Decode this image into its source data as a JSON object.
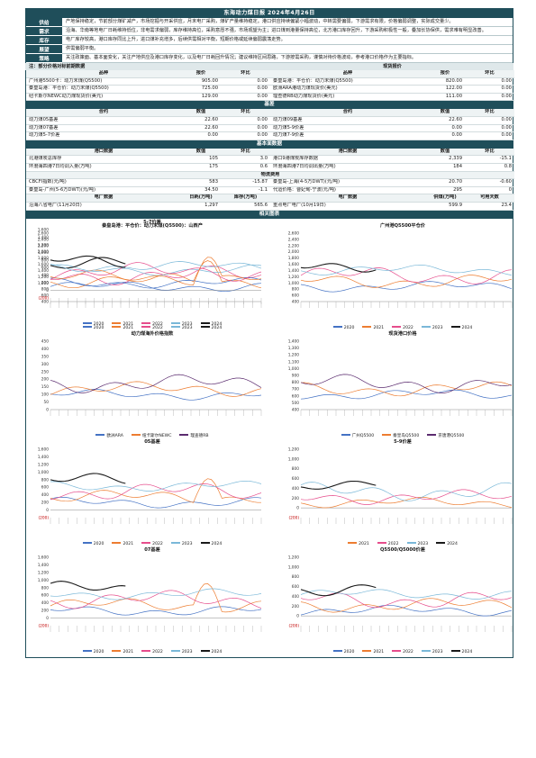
{
  "title": "东海动力煤日报 2024年4月26日",
  "summary": [
    {
      "label": "供给",
      "text": "产地保持稳定，节前部分煤矿减产，市场挖掘与开采供应，月末电厂采购，煤矿产量维持稳定。港口供应持续偏紧小幅波动，中转需要偏弱，下游需求有限，价格偏弱调整，实际成交量少。"
    },
    {
      "label": "需求",
      "text": "沿海、华南等地电厂日耗维持低位，非电需求偏弱，库存维持高位，采购意愿不强，市场观望为主；进口煤到港量保持高位，北方港口库存回升，下游采购积极性一般，叠加长协保供，需求难有明显改善。"
    },
    {
      "label": "库存",
      "text": "电厂库存较高，港口库存同比上升，进口煤补充增多，后续供需相对平衡，短期价格或延续偏弱震荡走势。"
    },
    {
      "label": "展望",
      "text": "供需偏弱平衡。"
    },
    {
      "label": "策略",
      "text": "关注政策面、基本面变化，关注产地供应及港口库存变化，以及电厂日耗回升情况；建议维持区间思路，下游按需采购，谨慎对待价格波动，参考港口价格作为主要指标。"
    }
  ],
  "tables": {
    "notice": "注：部分价格对标前期数据",
    "spot_label": "现货报价",
    "col_product": "品种",
    "col_price": "报价",
    "col_change": "环比",
    "spot_left": [
      {
        "name": "广州港5500卡：动力末煤(Q5500)",
        "price": "905.00",
        "chg": "0.00"
      },
      {
        "name": "秦皇岛港：平仓价：动力末煤(Q5500)",
        "price": "725.00",
        "chg": "0.00"
      },
      {
        "name": "纽卡斯尔NEWC动力煤现货价(美元)",
        "price": "129.00",
        "chg": "0.00"
      }
    ],
    "spot_right": [
      {
        "name": "秦皇岛港：平仓价：动力末煤(Q5500)",
        "price": "820.00",
        "chg": "0.00"
      },
      {
        "name": "欧洲ARA港动力煤现货价(美元)",
        "price": "122.00",
        "chg": "0.00"
      },
      {
        "name": "理查德RB动力煤现货价(美元)",
        "price": "111.00",
        "chg": "0.00"
      }
    ],
    "basis_label": "基差",
    "col_contract": "合约",
    "col_value": "数值",
    "basis_left": [
      {
        "name": "动力煤05基差",
        "value": "22.60",
        "chg": "0.00"
      },
      {
        "name": "动力煤07基差",
        "value": "22.60",
        "chg": "0.00"
      },
      {
        "name": "动力煤5-7价差",
        "value": "0.00",
        "chg": "0.00"
      }
    ],
    "basis_right": [
      {
        "name": "动力煤09基差",
        "value": "22.60",
        "chg": "0.00"
      },
      {
        "name": "动力煤5-9价差",
        "value": "0.00",
        "chg": "0.00"
      },
      {
        "name": "动力煤7-9价差",
        "value": "0.00",
        "chg": "0.00"
      }
    ],
    "fund_label": "基本面数据",
    "col_port": "港口数据",
    "col_num": "数值",
    "fund_rows": [
      {
        "l": "北港煤炭总库存",
        "lv": "105",
        "lc": "3.0",
        "r": "港口9港煤炭库存数据",
        "rv": "2,339",
        "rc": "-15.1"
      },
      {
        "l": "环渤海四港7日均调入量(万吨)",
        "lv": "175",
        "lc": "0.6",
        "r": "环渤海四港7日均调出量(万吨)",
        "rv": "184",
        "rc": "0.8"
      }
    ],
    "freight_label": "物流费用",
    "freight_row": {
      "l": "CBCFI指数(元/吨)",
      "lv": "583",
      "lc": "-15.87",
      "r": "秦皇岛-上海(4-5万DWT)(元/吨)",
      "rv": "20.70",
      "rc": "-0.60"
    },
    "freight_row2": {
      "l": "秦皇岛-广州(5-6万DWT)(元/吨)",
      "lv": "34.50",
      "lc": "-1.1",
      "r": "代运价格：曹妃甸-宁波(元/吨)",
      "rv": "295",
      "rc": "0"
    },
    "plant_hdr": {
      "l": "电厂数据",
      "lv": "日耗(万吨)",
      "lc": "库存(万吨)",
      "r": "电厂数据",
      "rv": "供煤(万吨)",
      "rc": "可用天数"
    },
    "plant_row": {
      "l": "沿海八省电厂(11月20日)",
      "lv": "1,297",
      "lc": "565.6",
      "r": "重点电厂电厂(10月19日)",
      "rv": "599.9",
      "rc": "23.4"
    },
    "charts_label": "相关图表"
  },
  "charts": [
    {
      "title": "秦皇岛港：平仓价：动力末煤(Q5500)：山西产",
      "ylim": [
        400,
        2600
      ],
      "yticks": [
        "2,600",
        "2,400",
        "2,200",
        "2,000",
        "1,800",
        "1,600",
        "1,400",
        "1,200",
        "1,000",
        "800",
        "600",
        "400"
      ],
      "legend": [
        "2020",
        "2021",
        "2022",
        "2023",
        "2024"
      ]
    },
    {
      "title": "广州港Q5500平仓价",
      "ylim": [
        400,
        2600
      ],
      "yticks": [
        "2,600",
        "2,400",
        "2,200",
        "2,000",
        "1,800",
        "1,600",
        "1,400",
        "1,200",
        "1,000",
        "800",
        "600",
        "400"
      ],
      "legend": [
        "2020",
        "2021",
        "2022",
        "2023",
        "2024"
      ]
    },
    {
      "title": "动力煤海外价格指数",
      "ylim": [
        0,
        450
      ],
      "yticks": [
        "450",
        "400",
        "350",
        "300",
        "250",
        "200",
        "150",
        "100",
        "50",
        "0"
      ],
      "legend": [
        "欧洲ARA",
        "纽卡斯尔NEWC",
        "理查德RB"
      ]
    },
    {
      "title": "现货港口价格",
      "ylim": [
        400,
        1400
      ],
      "yticks": [
        "1,400",
        "1,300",
        "1,200",
        "1,100",
        "1,000",
        "900",
        "800",
        "700",
        "600",
        "500",
        "400"
      ],
      "legend": [
        "广州Q5500",
        "秦皇岛Q5500",
        "京唐港Q5500"
      ]
    },
    {
      "title": "05基差",
      "ylim": [
        -200,
        1600
      ],
      "yticks": [
        "1,600",
        "1,400",
        "1,200",
        "1,000",
        "800",
        "600",
        "400",
        "200",
        "0",
        "(200)"
      ],
      "legend": [
        "2020",
        "2021",
        "2022",
        "2023",
        "2024"
      ]
    },
    {
      "title": "5-9价差",
      "ylim": [
        -200,
        1200
      ],
      "yticks": [
        "1,200",
        "1,000",
        "800",
        "600",
        "400",
        "200",
        "0",
        "(200)"
      ],
      "legend": [
        "2021",
        "2022",
        "2023",
        "2024"
      ]
    },
    {
      "title": "07基差",
      "ylim": [
        -200,
        1600
      ],
      "yticks": [
        "1,600",
        "1,400",
        "1,200",
        "1,000",
        "800",
        "600",
        "400",
        "200",
        "0",
        "(200)"
      ],
      "legend": [
        "2020",
        "2021",
        "2022",
        "2023",
        "2024"
      ]
    },
    {
      "title": "Q5500/Q5000价差",
      "ylim": [
        -200,
        1200
      ],
      "yticks": [
        "1,200",
        "1,000",
        "800",
        "600",
        "400",
        "200",
        "0",
        "(200)"
      ],
      "legend": [
        "2020",
        "2021",
        "2022",
        "2023",
        "2024"
      ]
    },
    {
      "title": "5-7价差",
      "ylim": [
        -200,
        1600
      ],
      "yticks": [
        "1,600",
        "1,400",
        "1,200",
        "1,000",
        "800",
        "600",
        "400",
        "200",
        "0",
        "(200)"
      ],
      "legend": [
        "2020",
        "2021",
        "2022",
        "2023",
        "2024"
      ]
    }
  ],
  "colors": {
    "banner": "#1f4e5a",
    "y2020": "#4472c4",
    "y2021": "#ed7d31",
    "y2022": "#e64d8c",
    "y2023": "#7ab8d8",
    "y2024": "#1a1a1a",
    "purple": "#5b2c6f"
  }
}
